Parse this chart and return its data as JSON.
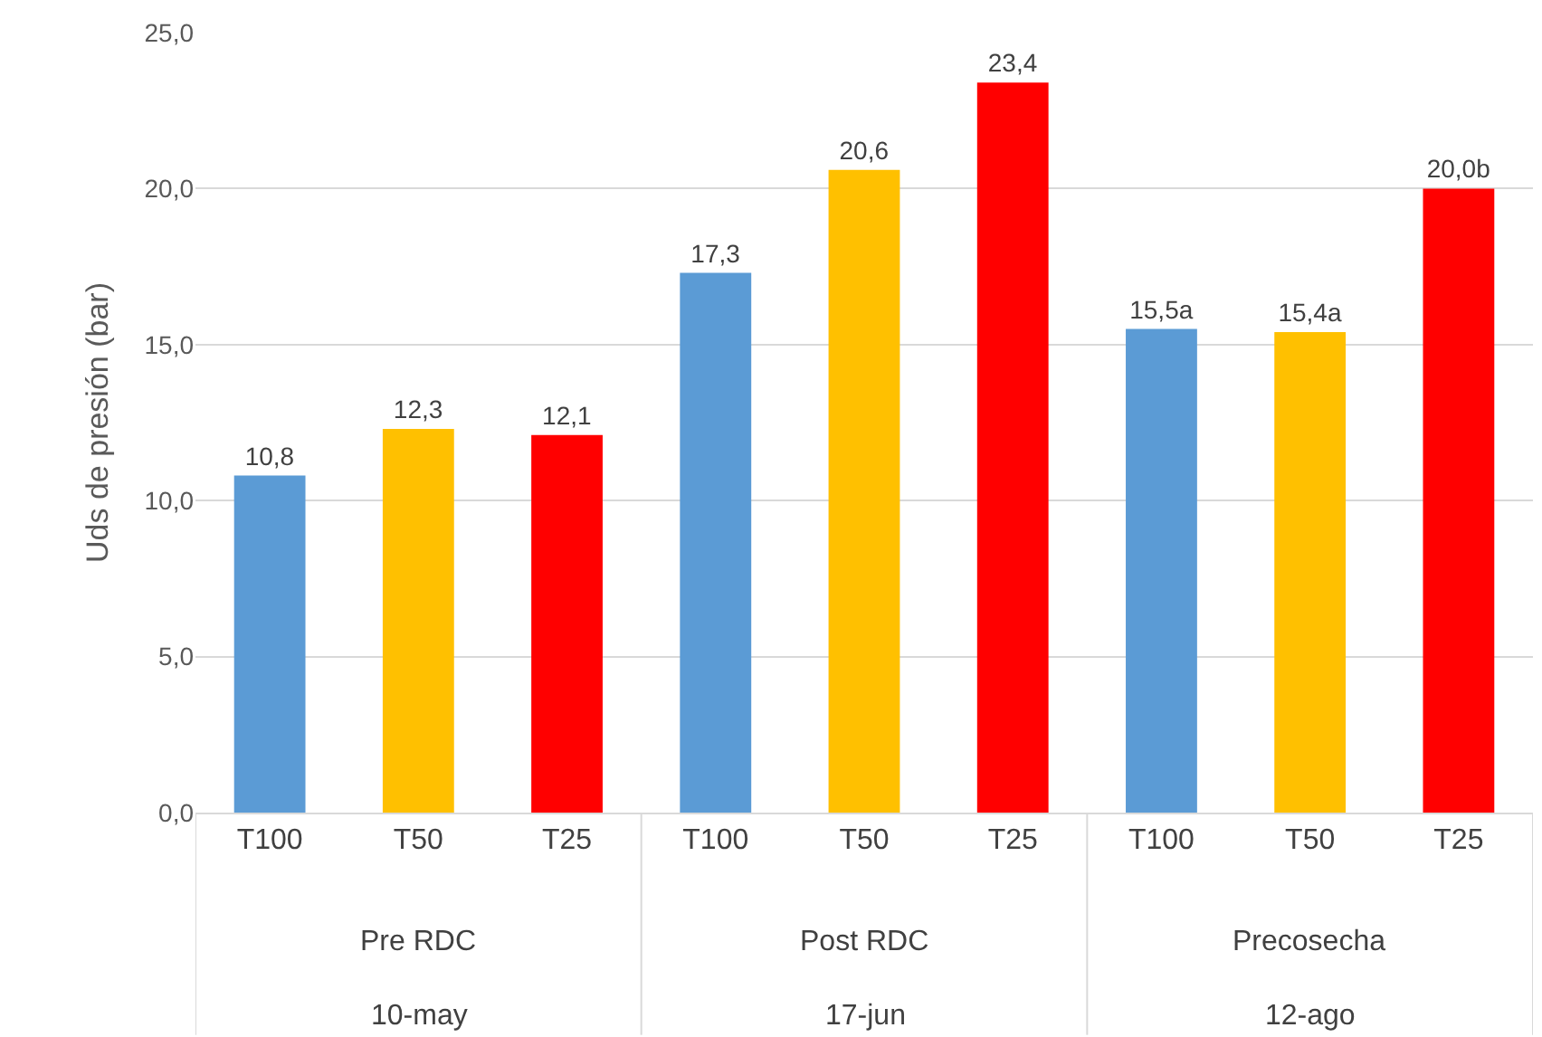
{
  "chart_data": {
    "type": "bar",
    "ylabel": "Uds de presión (bar)",
    "categories": [
      "T100",
      "T50",
      "T25",
      "T100",
      "T50",
      "T25",
      "T100",
      "T50",
      "T25"
    ],
    "values": [
      10.8,
      12.3,
      12.1,
      17.3,
      20.6,
      23.4,
      15.5,
      15.4,
      20.0
    ],
    "colors": [
      "#5b9bd5",
      "#ffc000",
      "#ff0000",
      "#5b9bd5",
      "#ffc000",
      "#ff0000",
      "#5b9bd5",
      "#ffc000",
      "#ff0000"
    ],
    "value_labels": [
      "10,8",
      "12,3",
      "12,1",
      "17,3",
      "20,6",
      "23,4",
      "15,5a",
      "15,4a",
      "20,0b"
    ],
    "annotations": [
      "Pre RDC",
      "Post RDC",
      "Precosecha",
      "10-may",
      "17-jun",
      "12-ago"
    ],
    "ylim": [
      0,
      25
    ],
    "yticks": [
      {
        "value": 0,
        "label": "0,0"
      },
      {
        "value": 5,
        "label": "5,0"
      },
      {
        "value": 10,
        "label": "10,0"
      },
      {
        "value": 15,
        "label": "15,0"
      },
      {
        "value": 20,
        "label": "20,0"
      },
      {
        "value": 25,
        "label": "25,0"
      }
    ],
    "grid": "y",
    "legend": false
  }
}
